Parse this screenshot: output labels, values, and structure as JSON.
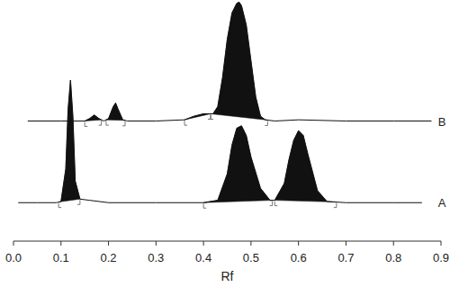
{
  "chart_data": {
    "type": "line",
    "x_label": "Rf",
    "xlim": [
      0,
      0.9
    ],
    "xticks": [
      {
        "value": 0,
        "label": "0.0"
      },
      {
        "value": 0.1,
        "label": "0.1"
      },
      {
        "value": 0.2,
        "label": "0.2"
      },
      {
        "value": 0.3,
        "label": "0.3"
      },
      {
        "value": 0.4,
        "label": "0.4"
      },
      {
        "value": 0.5,
        "label": "0.5"
      },
      {
        "value": 0.6,
        "label": "0.6"
      },
      {
        "value": 0.7,
        "label": "0.7"
      },
      {
        "value": 0.8,
        "label": "0.8"
      },
      {
        "value": 0.9,
        "label": "0.9"
      }
    ],
    "ylim": [
      0,
      100
    ],
    "tick_labels": "x",
    "grid": false,
    "series": [
      {
        "name": "A",
        "color": "#111111",
        "x": [
          0.01,
          0.05,
          0.09,
          0.1,
          0.11,
          0.115,
          0.12,
          0.125,
          0.13,
          0.14,
          0.16,
          0.2,
          0.3,
          0.4,
          0.43,
          0.45,
          0.46,
          0.47,
          0.48,
          0.49,
          0.5,
          0.52,
          0.54,
          0.55,
          0.57,
          0.58,
          0.59,
          0.6,
          0.61,
          0.62,
          0.64,
          0.66,
          0.7,
          0.8,
          0.86
        ],
        "values": [
          16,
          16,
          16,
          16.5,
          30,
          55,
          67,
          52,
          25,
          17.5,
          17,
          16,
          16,
          16,
          17,
          28,
          40,
          47,
          48,
          44,
          35,
          22,
          17,
          17,
          24,
          34,
          42,
          46,
          44,
          36,
          21,
          16.5,
          16,
          16,
          16
        ],
        "peaks": [
          {
            "start": 0.095,
            "end": 0.14
          },
          {
            "start": 0.4,
            "end": 0.545
          },
          {
            "start": 0.55,
            "end": 0.68
          }
        ]
      },
      {
        "name": "B",
        "color": "#111111",
        "x": [
          0.03,
          0.1,
          0.15,
          0.16,
          0.17,
          0.18,
          0.19,
          0.2,
          0.21,
          0.215,
          0.22,
          0.23,
          0.24,
          0.3,
          0.36,
          0.38,
          0.4,
          0.42,
          0.43,
          0.44,
          0.45,
          0.46,
          0.47,
          0.475,
          0.48,
          0.49,
          0.5,
          0.51,
          0.52,
          0.53,
          0.55,
          0.6,
          0.7,
          0.8,
          0.88
        ],
        "values": [
          50,
          50,
          50,
          51,
          52.5,
          51,
          50,
          51,
          56,
          57.5,
          55,
          50.5,
          50,
          50,
          50.5,
          52,
          53,
          53,
          56,
          68,
          84,
          95,
          99,
          99.5,
          98,
          90,
          75,
          60,
          52,
          50.5,
          50,
          50.5,
          50,
          50,
          50
        ],
        "peaks": [
          {
            "start": 0.15,
            "end": 0.185
          },
          {
            "start": 0.195,
            "end": 0.235
          },
          {
            "start": 0.36,
            "end": 0.415
          },
          {
            "start": 0.415,
            "end": 0.535
          }
        ]
      }
    ]
  }
}
